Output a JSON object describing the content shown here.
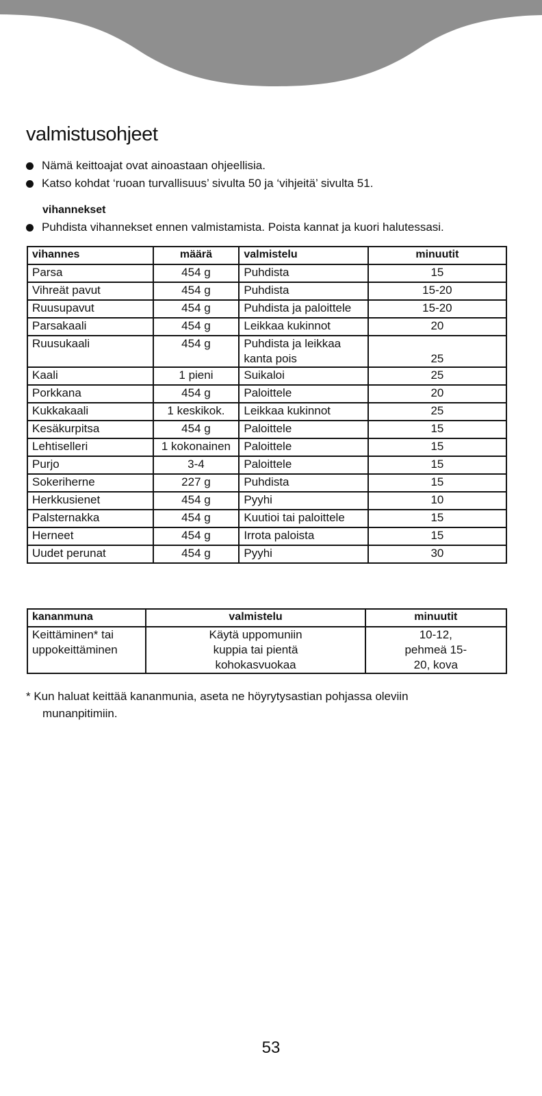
{
  "title": "valmistusohjeet",
  "bullets": [
    "Nämä keittoajat ovat ainoastaan ohjeellisia.",
    "Katso kohdat ‘ruoan turvallisuus’ sivulta 50 ja ‘vihjeitä’ sivulta 51."
  ],
  "subheading": "vihannekset",
  "veg_bullet": "Puhdista vihannekset ennen valmistamista. Poista kannat ja kuori halutessasi.",
  "veg_table": {
    "headers": [
      "vihannes",
      "määrä",
      "valmistelu",
      "minuutit"
    ],
    "rows": [
      [
        "Parsa",
        "454 g",
        "Puhdista",
        "15"
      ],
      [
        "Vihreät pavut",
        "454 g",
        "Puhdista",
        "15-20"
      ],
      [
        "Ruusupavut",
        "454 g",
        "Puhdista ja paloittele",
        "15-20"
      ],
      [
        "Parsakaali",
        "454 g",
        "Leikkaa kukinnot",
        "20"
      ],
      [
        "Ruusukaali",
        "454 g",
        "Puhdista ja leikkaa kanta pois",
        "25"
      ],
      [
        "Kaali",
        "1 pieni",
        "Suikaloi",
        "25"
      ],
      [
        "Porkkana",
        "454 g",
        "Paloittele",
        "20"
      ],
      [
        "Kukkakaali",
        "1 keskikok.",
        "Leikkaa kukinnot",
        "25"
      ],
      [
        "Kesäkurpitsa",
        "454 g",
        "Paloittele",
        "15"
      ],
      [
        "Lehtiselleri",
        "1 kokonainen",
        "Paloittele",
        "15"
      ],
      [
        "Purjo",
        "3-4",
        "Paloittele",
        "15"
      ],
      [
        "Sokeriherne",
        "227 g",
        "Puhdista",
        "15"
      ],
      [
        "Herkkusienet",
        "454 g",
        "Pyyhi",
        "10"
      ],
      [
        "Palsternakka",
        "454 g",
        "Kuutioi tai paloittele",
        "15"
      ],
      [
        "Herneet",
        "454 g",
        "Irrota paloista",
        "15"
      ],
      [
        "Uudet perunat",
        "454 g",
        "Pyyhi",
        "30"
      ]
    ]
  },
  "egg_table": {
    "headers": [
      "kananmuna",
      "valmistelu",
      "minuutit"
    ],
    "rows": [
      [
        "Keittäminen* tai uppokeittäminen",
        "Käytä uppomuniin kuppia tai pientä kohokasvuokaa",
        "10-12, pehmeä 15-20, kova"
      ]
    ]
  },
  "footnote": {
    "line1": "* Kun haluat keittää kananmunia, aseta ne höyrytysastian pohjassa oleviin",
    "line2": "munanpitimiin."
  },
  "page_number": "53",
  "colors": {
    "wave": "#8f8f8f"
  }
}
